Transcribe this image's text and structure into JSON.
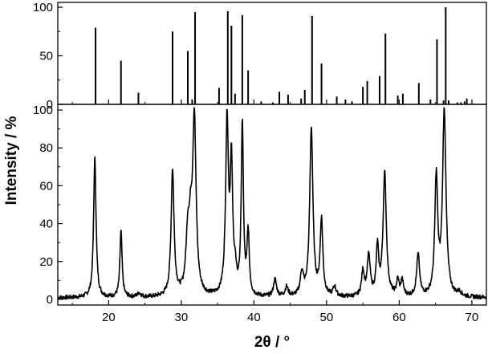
{
  "chart_data": [
    {
      "type": "bar",
      "panel": "reference-pattern",
      "x_ticks": [
        20,
        30,
        40,
        50,
        60,
        70
      ],
      "y_ticks": [
        0,
        50,
        100
      ],
      "xlim": [
        13,
        72
      ],
      "ylim": [
        0,
        105
      ],
      "peaks_x": [
        18.2,
        21.7,
        24.1,
        28.8,
        30.9,
        31.5,
        31.9,
        35.2,
        36.4,
        36.9,
        37.4,
        38.4,
        39.2,
        41.0,
        42.6,
        43.5,
        44.7,
        46.5,
        47.0,
        48.0,
        49.3,
        51.4,
        52.6,
        53.5,
        55.0,
        55.6,
        57.3,
        58.1,
        59.8,
        60.5,
        62.7,
        64.3,
        65.2,
        66.1,
        66.4,
        66.8,
        68.0,
        68.5,
        69.0,
        69.3
      ],
      "peaks_y": [
        79,
        45,
        12,
        75,
        55,
        5,
        95,
        17,
        96,
        81,
        11,
        92,
        35,
        3,
        2,
        13,
        10,
        6,
        15,
        91,
        42,
        8,
        5,
        3,
        18,
        24,
        29,
        73,
        9,
        11,
        22,
        5,
        67,
        4,
        100,
        4,
        2,
        2,
        3,
        6
      ]
    },
    {
      "type": "line",
      "panel": "measured-pattern",
      "title": "",
      "xlabel": "2θ / °",
      "ylabel": "Intensity / %",
      "x_ticks": [
        20,
        30,
        40,
        50,
        60,
        70
      ],
      "y_ticks": [
        0,
        20,
        40,
        60,
        80,
        100
      ],
      "xlim": [
        13,
        72
      ],
      "ylim": [
        -3,
        103
      ],
      "peaks": [
        {
          "x": 18.1,
          "height": 74,
          "width": 0.2
        },
        {
          "x": 21.7,
          "height": 35,
          "width": 0.18
        },
        {
          "x": 24.2,
          "height": 2,
          "width": 0.3
        },
        {
          "x": 28.8,
          "height": 67,
          "width": 0.24
        },
        {
          "x": 30.9,
          "height": 30,
          "width": 0.3
        },
        {
          "x": 31.3,
          "height": 25,
          "width": 0.25
        },
        {
          "x": 31.8,
          "height": 92,
          "width": 0.28
        },
        {
          "x": 36.3,
          "height": 92,
          "width": 0.23
        },
        {
          "x": 36.9,
          "height": 67,
          "width": 0.2
        },
        {
          "x": 37.4,
          "height": 10,
          "width": 0.2
        },
        {
          "x": 38.4,
          "height": 90,
          "width": 0.18
        },
        {
          "x": 39.2,
          "height": 33,
          "width": 0.18
        },
        {
          "x": 42.9,
          "height": 9,
          "width": 0.25
        },
        {
          "x": 44.5,
          "height": 5,
          "width": 0.25
        },
        {
          "x": 46.6,
          "height": 12,
          "width": 0.25
        },
        {
          "x": 47.9,
          "height": 89,
          "width": 0.26
        },
        {
          "x": 49.3,
          "height": 40,
          "width": 0.22
        },
        {
          "x": 51.1,
          "height": 5,
          "width": 0.25
        },
        {
          "x": 55.0,
          "height": 13,
          "width": 0.22
        },
        {
          "x": 55.8,
          "height": 21,
          "width": 0.25
        },
        {
          "x": 57.0,
          "height": 25,
          "width": 0.2
        },
        {
          "x": 58.0,
          "height": 65,
          "width": 0.27
        },
        {
          "x": 59.8,
          "height": 8,
          "width": 0.2
        },
        {
          "x": 60.4,
          "height": 8,
          "width": 0.22
        },
        {
          "x": 62.6,
          "height": 22,
          "width": 0.24
        },
        {
          "x": 65.1,
          "height": 62,
          "width": 0.24
        },
        {
          "x": 66.2,
          "height": 98,
          "width": 0.28
        },
        {
          "x": 68.3,
          "height": 2,
          "width": 0.3
        }
      ],
      "baseline": 0.8
    }
  ]
}
